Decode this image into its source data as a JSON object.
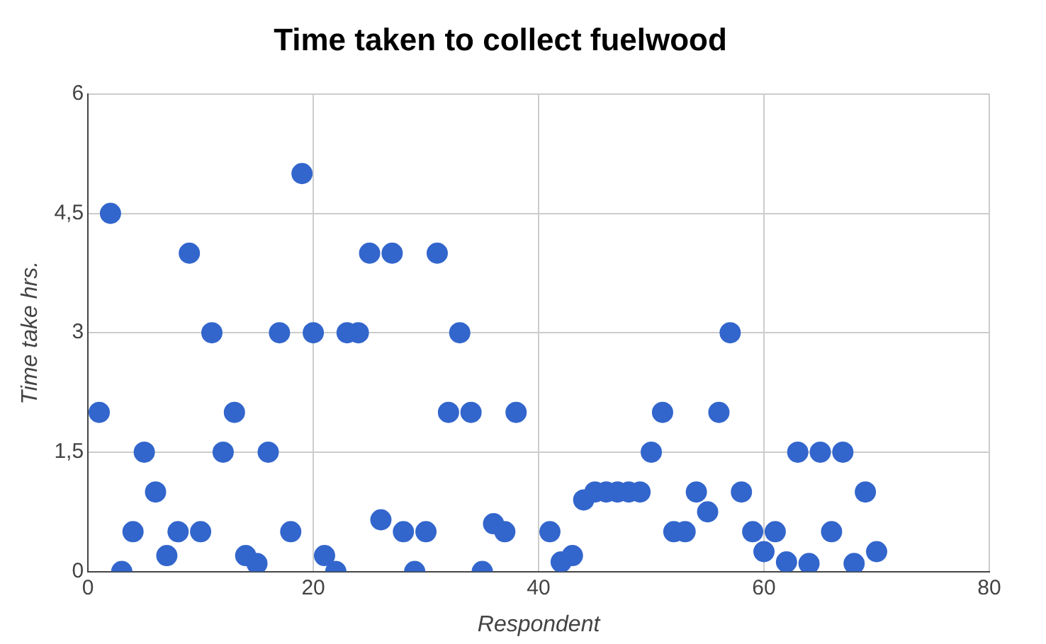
{
  "chart_data": {
    "type": "scatter",
    "title": "Time taken to collect fuelwood",
    "xlabel": "Respondent",
    "ylabel": "Time take hrs.",
    "x": [
      1,
      2,
      3,
      4,
      5,
      6,
      7,
      8,
      9,
      10,
      11,
      12,
      13,
      14,
      15,
      16,
      17,
      18,
      19,
      20,
      21,
      22,
      23,
      24,
      25,
      26,
      27,
      28,
      29,
      30,
      31,
      32,
      33,
      34,
      35,
      36,
      37,
      38,
      41,
      42,
      43,
      44,
      45,
      46,
      47,
      48,
      49,
      50,
      51,
      52,
      53,
      54,
      55,
      56,
      57,
      58,
      59,
      60,
      61,
      62,
      63,
      64,
      65,
      66,
      67,
      68,
      69,
      70
    ],
    "series": [
      {
        "color": "#3366cc",
        "values": [
          2,
          4.5,
          0,
          0.5,
          1.5,
          1,
          0.2,
          0.5,
          4,
          0.5,
          3,
          1.5,
          2,
          0.2,
          0.1,
          1.5,
          3,
          0.5,
          5,
          3,
          0.2,
          0,
          3,
          3,
          4,
          0.65,
          4,
          0.5,
          0,
          0.5,
          4,
          2,
          3,
          2,
          0,
          0.6,
          0.5,
          2,
          0.5,
          0.12,
          0.2,
          0.9,
          1,
          1,
          1,
          1,
          1,
          1.5,
          2,
          0.5,
          0.5,
          1,
          0.75,
          2,
          3,
          1,
          0.5,
          0.25,
          0.5,
          0.12,
          1.5,
          0.1,
          1.5,
          0.5,
          1.5,
          0.1,
          1,
          0.25
        ]
      }
    ],
    "xlim": [
      0,
      80
    ],
    "xticks": [
      0,
      20,
      40,
      60,
      80
    ],
    "ylim": [
      0,
      6
    ],
    "yticks": [
      0,
      {
        "value": 1.5,
        "label": "1,5"
      },
      3,
      {
        "value": 4.5,
        "label": "4,5"
      },
      6
    ],
    "grid": true,
    "marker": "circle",
    "legend": false
  }
}
